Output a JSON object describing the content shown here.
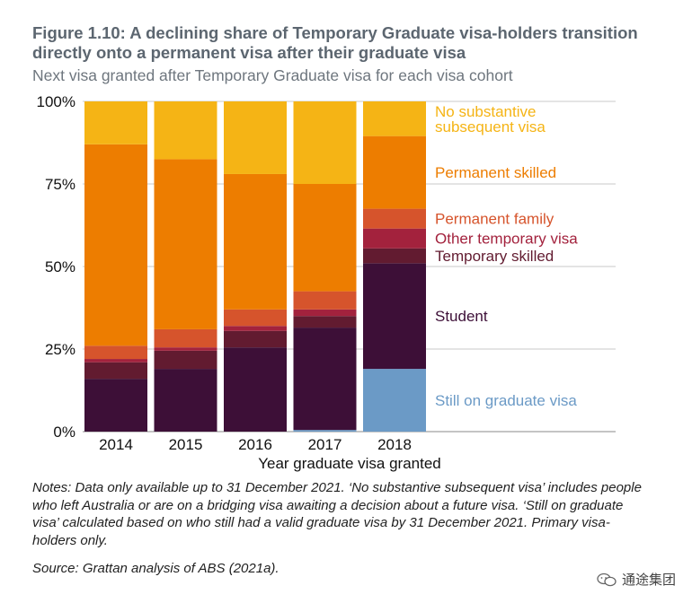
{
  "header": {
    "title": "Figure 1.10: A declining share of Temporary Graduate visa-holders transition directly onto a permanent visa after their graduate visa",
    "subtitle": "Next visa granted after Temporary Graduate visa for each visa cohort"
  },
  "chart_data": {
    "type": "bar",
    "stacked": true,
    "title": "A declining share of Temporary Graduate visa-holders transition directly onto a permanent visa after their graduate visa",
    "xlabel": "Year graduate visa granted",
    "ylabel": "",
    "ylim": [
      0,
      100
    ],
    "yticks": [
      0,
      25,
      50,
      75,
      100
    ],
    "ytick_labels": [
      "0%",
      "25%",
      "50%",
      "75%",
      "100%"
    ],
    "categories": [
      "2014",
      "2015",
      "2016",
      "2017",
      "2018"
    ],
    "series": [
      {
        "name": "Still on graduate visa",
        "color": "#6b9ac6",
        "values": [
          0,
          0,
          0,
          0.5,
          19
        ]
      },
      {
        "name": "Student",
        "color": "#3d0f37",
        "values": [
          16,
          19,
          25.5,
          31,
          32
        ]
      },
      {
        "name": "Temporary skilled",
        "color": "#621b30",
        "values": [
          5,
          5.5,
          5,
          3.5,
          4.5
        ]
      },
      {
        "name": "Other temporary visa",
        "color": "#a3223d",
        "values": [
          1,
          1,
          1.5,
          2,
          6
        ]
      },
      {
        "name": "Permanent family",
        "color": "#d6542c",
        "values": [
          4,
          5.5,
          5,
          5.5,
          6
        ]
      },
      {
        "name": "Permanent skilled",
        "color": "#ed7d00",
        "values": [
          61,
          51.5,
          41,
          32.5,
          22
        ]
      },
      {
        "name": "No substantive subsequent visa",
        "color": "#f5b415",
        "values": [
          13,
          17.5,
          22,
          25,
          10.5
        ]
      }
    ],
    "labels": [
      {
        "series": "No substantive subsequent visa",
        "lines": [
          "No substantive",
          "subsequent visa"
        ],
        "color": "#f5b415"
      },
      {
        "series": "Permanent skilled",
        "lines": [
          "Permanent skilled"
        ],
        "color": "#ed7d00"
      },
      {
        "series": "Permanent family",
        "lines": [
          "Permanent family"
        ],
        "color": "#d6542c"
      },
      {
        "series": "Other temporary visa",
        "lines": [
          "Other temporary visa"
        ],
        "color": "#a3223d"
      },
      {
        "series": "Temporary skilled",
        "lines": [
          "Temporary skilled"
        ],
        "color": "#621b30"
      },
      {
        "series": "Student",
        "lines": [
          "Student"
        ],
        "color": "#3d0f37"
      },
      {
        "series": "Still on graduate visa",
        "lines": [
          "Still on graduate visa"
        ],
        "color": "#6b9ac6"
      }
    ]
  },
  "footer": {
    "notes": "Notes: Data only available up to 31 December 2021. ‘No substantive subsequent visa’ includes people who left Australia or are on a bridging visa awaiting a decision about a future visa. ‘Still on graduate visa’ calculated based on who still had a valid graduate visa by 31 December 2021. Primary visa-holders only.",
    "source": "Source: Grattan analysis of ABS (2021a).",
    "watermark": "通途集团",
    "watermark_icon": "wechat-icon"
  }
}
